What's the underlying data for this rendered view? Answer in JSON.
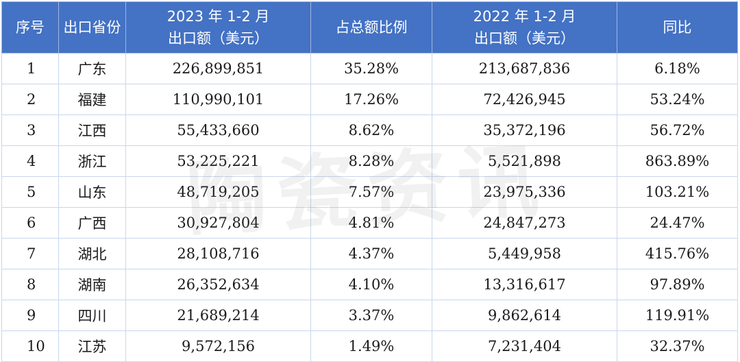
{
  "headers": {
    "seq": "序号",
    "province": "出口省份",
    "export_2023_line1": "2023 年 1-2 月",
    "export_2023_line2": "出口额（美元）",
    "share": "占总额比例",
    "export_2022_line1": "2022 年 1-2 月",
    "export_2022_line2": "出口额（美元）",
    "yoy": "同比"
  },
  "rows": [
    {
      "seq": "1",
      "province": "广东",
      "export_2023": "226,899,851",
      "share": "35.28%",
      "export_2022": "213,687,836",
      "yoy": "6.18%"
    },
    {
      "seq": "2",
      "province": "福建",
      "export_2023": "110,990,101",
      "share": "17.26%",
      "export_2022": "72,426,945",
      "yoy": "53.24%"
    },
    {
      "seq": "3",
      "province": "江西",
      "export_2023": "55,433,660",
      "share": "8.62%",
      "export_2022": "35,372,196",
      "yoy": "56.72%"
    },
    {
      "seq": "4",
      "province": "浙江",
      "export_2023": "53,225,221",
      "share": "8.28%",
      "export_2022": "5,521,898",
      "yoy": "863.89%"
    },
    {
      "seq": "5",
      "province": "山东",
      "export_2023": "48,719,205",
      "share": "7.57%",
      "export_2022": "23,975,336",
      "yoy": "103.21%"
    },
    {
      "seq": "6",
      "province": "广西",
      "export_2023": "30,927,804",
      "share": "4.81%",
      "export_2022": "24,847,273",
      "yoy": "24.47%"
    },
    {
      "seq": "7",
      "province": "湖北",
      "export_2023": "28,108,716",
      "share": "4.37%",
      "export_2022": "5,449,958",
      "yoy": "415.76%"
    },
    {
      "seq": "8",
      "province": "湖南",
      "export_2023": "26,352,634",
      "share": "4.10%",
      "export_2022": "13,316,617",
      "yoy": "97.89%"
    },
    {
      "seq": "9",
      "province": "四川",
      "export_2023": "21,689,214",
      "share": "3.37%",
      "export_2022": "9,862,614",
      "yoy": "119.91%"
    },
    {
      "seq": "10",
      "province": "江苏",
      "export_2023": "9,572,156",
      "share": "1.49%",
      "export_2022": "7,231,404",
      "yoy": "32.37%"
    }
  ],
  "watermark": "陶瓷资讯",
  "colors": {
    "header_bg": "#4472c4",
    "header_text": "#ffffff",
    "grid": "#c9d6ec"
  }
}
